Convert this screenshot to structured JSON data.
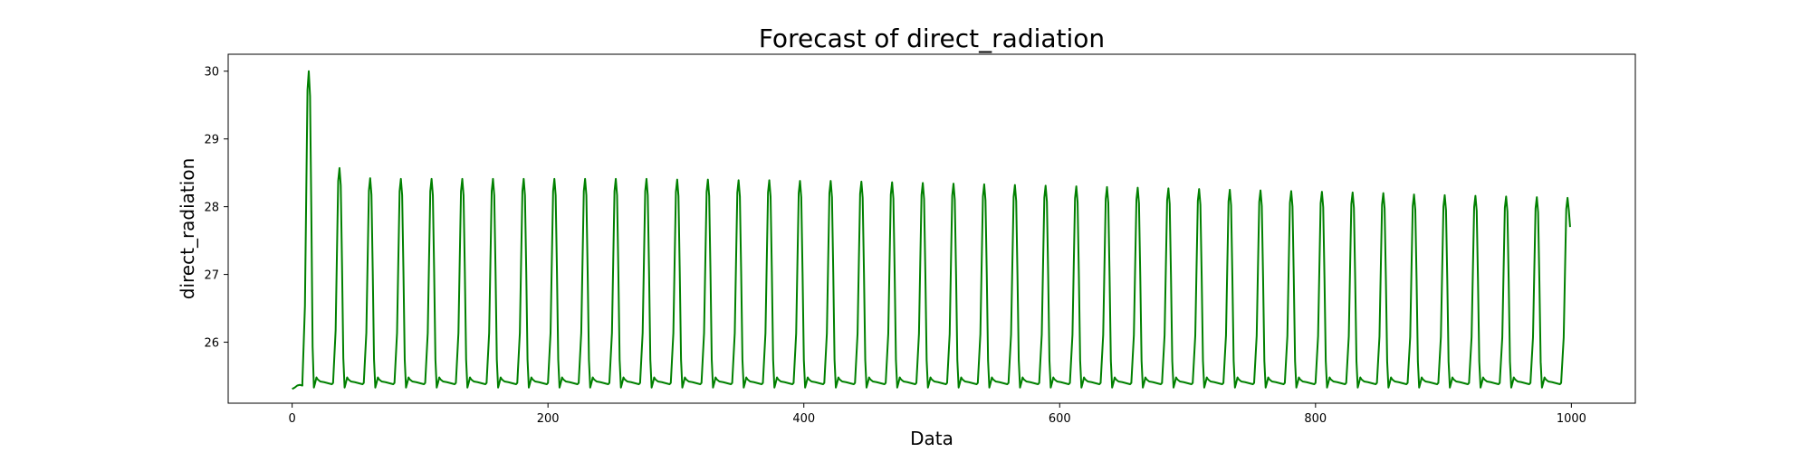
{
  "chart_data": {
    "type": "line",
    "title": "Forecast of direct_radiation",
    "xlabel": "Data",
    "ylabel": "direct_radiation",
    "xlim": [
      -50,
      1050
    ],
    "ylim": [
      25.1,
      30.25
    ],
    "xticks": [
      0,
      200,
      400,
      600,
      800,
      1000
    ],
    "yticks": [
      26,
      27,
      28,
      29,
      30
    ],
    "grid": false,
    "legend": "none",
    "series": [
      {
        "color": "#008000",
        "baseline": 25.38,
        "period": 24,
        "first_peak": {
          "x": 13,
          "y": 30.0
        },
        "peaks": [
          {
            "x": 37,
            "y": 28.57
          },
          {
            "x": 61,
            "y": 28.42
          },
          {
            "x": 85,
            "y": 28.41
          },
          {
            "x": 109,
            "y": 28.41
          },
          {
            "x": 133,
            "y": 28.41
          },
          {
            "x": 157,
            "y": 28.41
          },
          {
            "x": 181,
            "y": 28.41
          },
          {
            "x": 205,
            "y": 28.41
          },
          {
            "x": 229,
            "y": 28.41
          },
          {
            "x": 253,
            "y": 28.41
          },
          {
            "x": 277,
            "y": 28.41
          },
          {
            "x": 301,
            "y": 28.4
          },
          {
            "x": 325,
            "y": 28.4
          },
          {
            "x": 349,
            "y": 28.39
          },
          {
            "x": 373,
            "y": 28.39
          },
          {
            "x": 397,
            "y": 28.38
          },
          {
            "x": 421,
            "y": 28.38
          },
          {
            "x": 445,
            "y": 28.37
          },
          {
            "x": 469,
            "y": 28.36
          },
          {
            "x": 493,
            "y": 28.35
          },
          {
            "x": 517,
            "y": 28.34
          },
          {
            "x": 541,
            "y": 28.33
          },
          {
            "x": 565,
            "y": 28.32
          },
          {
            "x": 589,
            "y": 28.31
          },
          {
            "x": 613,
            "y": 28.3
          },
          {
            "x": 637,
            "y": 28.29
          },
          {
            "x": 661,
            "y": 28.28
          },
          {
            "x": 685,
            "y": 28.27
          },
          {
            "x": 709,
            "y": 28.26
          },
          {
            "x": 733,
            "y": 28.25
          },
          {
            "x": 757,
            "y": 28.24
          },
          {
            "x": 781,
            "y": 28.23
          },
          {
            "x": 805,
            "y": 28.22
          },
          {
            "x": 829,
            "y": 28.21
          },
          {
            "x": 853,
            "y": 28.2
          },
          {
            "x": 877,
            "y": 28.18
          },
          {
            "x": 901,
            "y": 28.17
          },
          {
            "x": 925,
            "y": 28.16
          },
          {
            "x": 949,
            "y": 28.15
          },
          {
            "x": 973,
            "y": 28.14
          },
          {
            "x": 997,
            "y": 28.13
          }
        ],
        "end": {
          "x": 999,
          "y": 27.7
        }
      }
    ]
  }
}
